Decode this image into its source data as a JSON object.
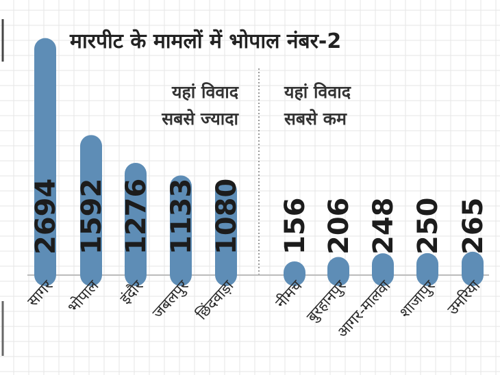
{
  "chart_data": {
    "type": "bar",
    "title": "मारपीट के मामलों में भोपाल नंबर-2",
    "xlabel": "",
    "ylabel": "",
    "ylim": [
      0,
      2800
    ],
    "grid": true,
    "groups": [
      {
        "label_line1": "यहां विवाद",
        "label_line2": "सबसे ज्यादा",
        "categories": [
          "सागर",
          "भोपाल",
          "इंदौर",
          "जबलपुर",
          "छिंदवाड़ा"
        ],
        "values": [
          2694,
          1592,
          1276,
          1133,
          1080
        ]
      },
      {
        "label_line1": "यहां विवाद",
        "label_line2": "सबसे कम",
        "categories": [
          "नीमच",
          "बुरहानपुर",
          "आगर-मालवा",
          "शाजापुर",
          "उमरिया"
        ],
        "values": [
          156,
          206,
          248,
          250,
          265
        ]
      }
    ],
    "bar_color": "#5e8db6",
    "grid_color": "#e6e6e6"
  }
}
